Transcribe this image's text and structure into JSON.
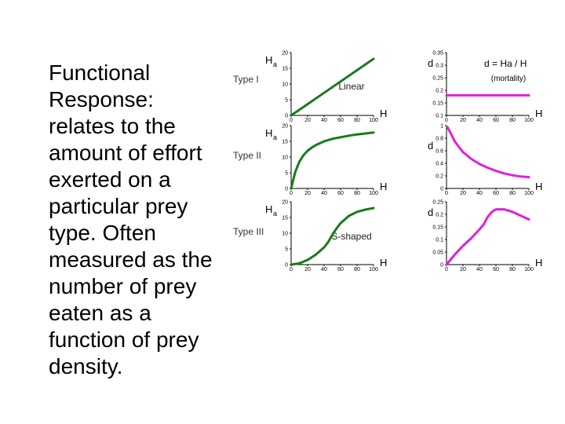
{
  "body_text": "Functional\nResponse:\nrelates to the\namount of effort\nexerted on a\nparticular prey\ntype.  Often\nmeasured as the\nnumber of prey\neaten as a\nfunction of prey\ndensity.",
  "colors": {
    "left_series": "#1a7a1a",
    "right_series": "#e020e0",
    "axis": "#000000"
  },
  "chart_data": [
    {
      "type": "line",
      "row_label": "Type I",
      "ylabel_main": "H",
      "ylabel_sub": "a",
      "xlabel": "H",
      "annotation": "Linear",
      "xlim": [
        0,
        100
      ],
      "ylim": [
        0,
        20
      ],
      "xticks": [
        "0",
        "20",
        "40",
        "60",
        "80",
        "100"
      ],
      "yticks": [
        "0",
        "5",
        "10",
        "15",
        "20"
      ],
      "series": [
        {
          "x": [
            0,
            20,
            40,
            60,
            80,
            100
          ],
          "y": [
            0,
            3.6,
            7.2,
            10.8,
            14.4,
            18
          ]
        }
      ]
    },
    {
      "type": "line",
      "title": "d = Ha / H",
      "subtitle": "(mortality)",
      "ylabel_main": "d",
      "xlabel": "H",
      "xlim": [
        0,
        100
      ],
      "ylim": [
        0.1,
        0.35
      ],
      "xticks": [
        "0",
        "20",
        "40",
        "60",
        "80",
        "100"
      ],
      "yticks": [
        "0.1",
        "0.15",
        "0.2",
        "0.25",
        "0.3",
        "0.35"
      ],
      "series": [
        {
          "x": [
            0,
            20,
            40,
            60,
            80,
            100
          ],
          "y": [
            0.18,
            0.18,
            0.18,
            0.18,
            0.18,
            0.18
          ]
        }
      ]
    },
    {
      "type": "line",
      "row_label": "Type II",
      "ylabel_main": "H",
      "ylabel_sub": "a",
      "xlabel": "H",
      "xlim": [
        0,
        100
      ],
      "ylim": [
        0,
        20
      ],
      "xticks": [
        "0",
        "20",
        "40",
        "60",
        "80",
        "100"
      ],
      "yticks": [
        "0",
        "5",
        "10",
        "15",
        "20"
      ],
      "series": [
        {
          "x": [
            0,
            5,
            10,
            15,
            20,
            25,
            30,
            40,
            50,
            60,
            70,
            80,
            90,
            100
          ],
          "y": [
            0,
            5.3,
            8.5,
            10.6,
            12.0,
            13.0,
            13.8,
            15.0,
            15.8,
            16.3,
            16.8,
            17.2,
            17.5,
            17.8
          ]
        }
      ]
    },
    {
      "type": "line",
      "ylabel_main": "d",
      "xlabel": "H",
      "xlim": [
        0,
        100
      ],
      "ylim": [
        0,
        1
      ],
      "xticks": [
        "0",
        "20",
        "40",
        "60",
        "80",
        "100"
      ],
      "yticks": [
        "0",
        "0.2",
        "0.4",
        "0.6",
        "0.8",
        "1"
      ],
      "series": [
        {
          "x": [
            1,
            5,
            10,
            15,
            20,
            30,
            40,
            50,
            60,
            70,
            80,
            90,
            100
          ],
          "y": [
            0.98,
            0.88,
            0.75,
            0.66,
            0.58,
            0.47,
            0.39,
            0.33,
            0.28,
            0.24,
            0.21,
            0.19,
            0.18
          ]
        }
      ]
    },
    {
      "type": "line",
      "row_label": "Type III",
      "ylabel_main": "H",
      "ylabel_sub": "a",
      "xlabel": "H",
      "annotation": "S-shaped",
      "xlim": [
        0,
        100
      ],
      "ylim": [
        0,
        20
      ],
      "xticks": [
        "0",
        "20",
        "40",
        "60",
        "80",
        "100"
      ],
      "yticks": [
        "0",
        "5",
        "10",
        "15",
        "20"
      ],
      "series": [
        {
          "x": [
            0,
            10,
            20,
            30,
            40,
            45,
            50,
            55,
            60,
            70,
            80,
            90,
            100
          ],
          "y": [
            0,
            0.4,
            1.5,
            3.2,
            5.5,
            7.2,
            9.5,
            11.5,
            13.2,
            15.5,
            16.8,
            17.5,
            18
          ]
        }
      ]
    },
    {
      "type": "line",
      "ylabel_main": "d",
      "xlabel": "H",
      "xlim": [
        0,
        100
      ],
      "ylim": [
        0,
        0.25
      ],
      "xticks": [
        "0",
        "20",
        "40",
        "60",
        "80",
        "100"
      ],
      "yticks": [
        "0",
        "0.05",
        "0.1",
        "0.15",
        "0.2",
        "0.25"
      ],
      "series": [
        {
          "x": [
            0,
            10,
            20,
            30,
            40,
            45,
            50,
            55,
            60,
            70,
            80,
            90,
            100
          ],
          "y": [
            0,
            0.04,
            0.075,
            0.105,
            0.14,
            0.16,
            0.19,
            0.21,
            0.22,
            0.22,
            0.21,
            0.195,
            0.18
          ]
        }
      ]
    }
  ]
}
